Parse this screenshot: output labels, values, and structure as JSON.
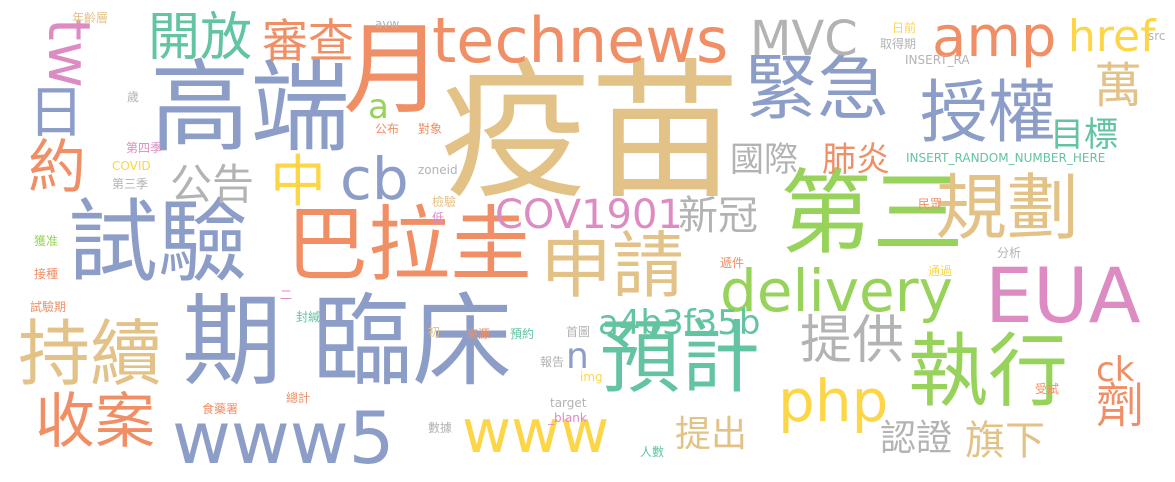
{
  "palette": {
    "blue": "#8c9dc8",
    "orange": "#f08f66",
    "green": "#97d25b",
    "tan": "#e3c287",
    "pink": "#dd8bc3",
    "teal": "#63c4a1",
    "yellow": "#fcd646",
    "gray": "#b3b3b3"
  },
  "words": [
    {
      "text": "疫苗",
      "color": "tan"
    },
    {
      "text": "technews",
      "color": "orange"
    },
    {
      "text": "高端",
      "color": "blue"
    },
    {
      "text": "月",
      "color": "orange"
    },
    {
      "text": "第三",
      "color": "green"
    },
    {
      "text": "臨床",
      "color": "blue"
    },
    {
      "text": "期",
      "color": "blue"
    },
    {
      "text": "試驗",
      "color": "blue"
    },
    {
      "text": "巴拉圭",
      "color": "orange"
    },
    {
      "text": "緊急",
      "color": "blue"
    },
    {
      "text": "授權",
      "color": "blue"
    },
    {
      "text": "規劃",
      "color": "tan"
    },
    {
      "text": "申請",
      "color": "tan"
    },
    {
      "text": "EUA",
      "color": "pink"
    },
    {
      "text": "持續",
      "color": "tan"
    },
    {
      "text": "預計",
      "color": "teal"
    },
    {
      "text": "執行",
      "color": "green"
    },
    {
      "text": "www5",
      "color": "blue"
    },
    {
      "text": "delivery",
      "color": "green"
    },
    {
      "text": "www",
      "color": "yellow"
    },
    {
      "text": "php",
      "color": "yellow"
    },
    {
      "text": "amp",
      "color": "orange"
    },
    {
      "text": "cb",
      "color": "blue"
    },
    {
      "text": "收案",
      "color": "orange"
    },
    {
      "text": "開放",
      "color": "teal"
    },
    {
      "text": "tw",
      "color": "pink"
    },
    {
      "text": "日",
      "color": "blue"
    },
    {
      "text": "約",
      "color": "orange"
    },
    {
      "text": "中",
      "color": "yellow"
    },
    {
      "text": "提供",
      "color": "gray"
    },
    {
      "text": "MVC",
      "color": "gray"
    },
    {
      "text": "審查",
      "color": "orange"
    },
    {
      "text": "href",
      "color": "yellow"
    },
    {
      "text": "萬",
      "color": "tan"
    },
    {
      "text": "公告",
      "color": "gray"
    },
    {
      "text": "COV1901",
      "color": "pink"
    },
    {
      "text": "新冠",
      "color": "gray"
    },
    {
      "text": "a4b3f35b",
      "color": "teal"
    },
    {
      "text": "國際",
      "color": "gray"
    },
    {
      "text": "肺炎",
      "color": "orange"
    },
    {
      "text": "目標",
      "color": "teal"
    },
    {
      "text": "提出",
      "color": "tan"
    },
    {
      "text": "認證",
      "color": "gray"
    },
    {
      "text": "旗下",
      "color": "tan"
    },
    {
      "text": "劑",
      "color": "orange"
    },
    {
      "text": "ck",
      "color": "orange"
    },
    {
      "text": "n",
      "color": "blue"
    },
    {
      "text": "a",
      "color": "green"
    },
    {
      "text": "年齡層",
      "color": "tan"
    },
    {
      "text": "avw",
      "color": "gray"
    },
    {
      "text": "日前",
      "color": "yellow"
    },
    {
      "text": "取得期",
      "color": "gray"
    },
    {
      "text": "src",
      "color": "gray"
    },
    {
      "text": "INSERT_RA",
      "color": "gray"
    },
    {
      "text": "歲",
      "color": "gray"
    },
    {
      "text": "公布",
      "color": "orange"
    },
    {
      "text": "對象",
      "color": "orange"
    },
    {
      "text": "第四季",
      "color": "pink"
    },
    {
      "text": "COVID",
      "color": "yellow"
    },
    {
      "text": "第三季",
      "color": "gray"
    },
    {
      "text": "zoneid",
      "color": "gray"
    },
    {
      "text": "INSERT_RANDOM_NUMBER_HERE",
      "color": "teal"
    },
    {
      "text": "檢驗",
      "color": "tan"
    },
    {
      "text": "低",
      "color": "pink"
    },
    {
      "text": "民眾",
      "color": "orange"
    },
    {
      "text": "獲准",
      "color": "green"
    },
    {
      "text": "分析",
      "color": "gray"
    },
    {
      "text": "接種",
      "color": "orange"
    },
    {
      "text": "遞件",
      "color": "orange"
    },
    {
      "text": "通過",
      "color": "yellow"
    },
    {
      "text": "二",
      "color": "pink"
    },
    {
      "text": "試驗期",
      "color": "orange"
    },
    {
      "text": "封緘",
      "color": "teal"
    },
    {
      "text": "初",
      "color": "tan"
    },
    {
      "text": "來源",
      "color": "orange"
    },
    {
      "text": "預約",
      "color": "teal"
    },
    {
      "text": "首圖",
      "color": "gray"
    },
    {
      "text": "報告",
      "color": "gray"
    },
    {
      "text": "img",
      "color": "yellow"
    },
    {
      "text": "target",
      "color": "gray"
    },
    {
      "text": "_blank",
      "color": "pink"
    },
    {
      "text": "受試",
      "color": "orange"
    },
    {
      "text": "食藥署",
      "color": "orange"
    },
    {
      "text": "總計",
      "color": "orange"
    },
    {
      "text": "數據",
      "color": "gray"
    },
    {
      "text": "人數",
      "color": "teal"
    }
  ]
}
